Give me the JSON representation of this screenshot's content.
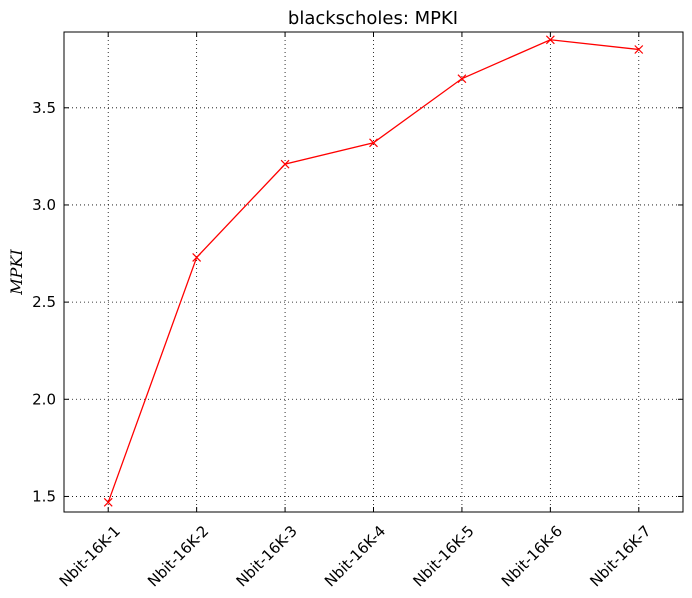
{
  "chart_data": {
    "type": "line",
    "title": "blackscholes: MPKI",
    "xlabel": "",
    "ylabel": "MPKI",
    "categories": [
      "Nbit-16K-1",
      "Nbit-16K-2",
      "Nbit-16K-3",
      "Nbit-16K-4",
      "Nbit-16K-5",
      "Nbit-16K-6",
      "Nbit-16K-7"
    ],
    "series": [
      {
        "values": [
          1.47,
          2.73,
          3.21,
          3.32,
          3.65,
          3.85,
          3.8
        ]
      }
    ],
    "ylim": [
      1.42,
      3.89
    ],
    "yticks": [
      "1.5",
      "2.0",
      "2.5",
      "3.0",
      "3.5"
    ],
    "grid": true,
    "colors": {
      "line": "#ff0000",
      "grid": "#000000",
      "axes": "#000000"
    },
    "marker": "x"
  }
}
